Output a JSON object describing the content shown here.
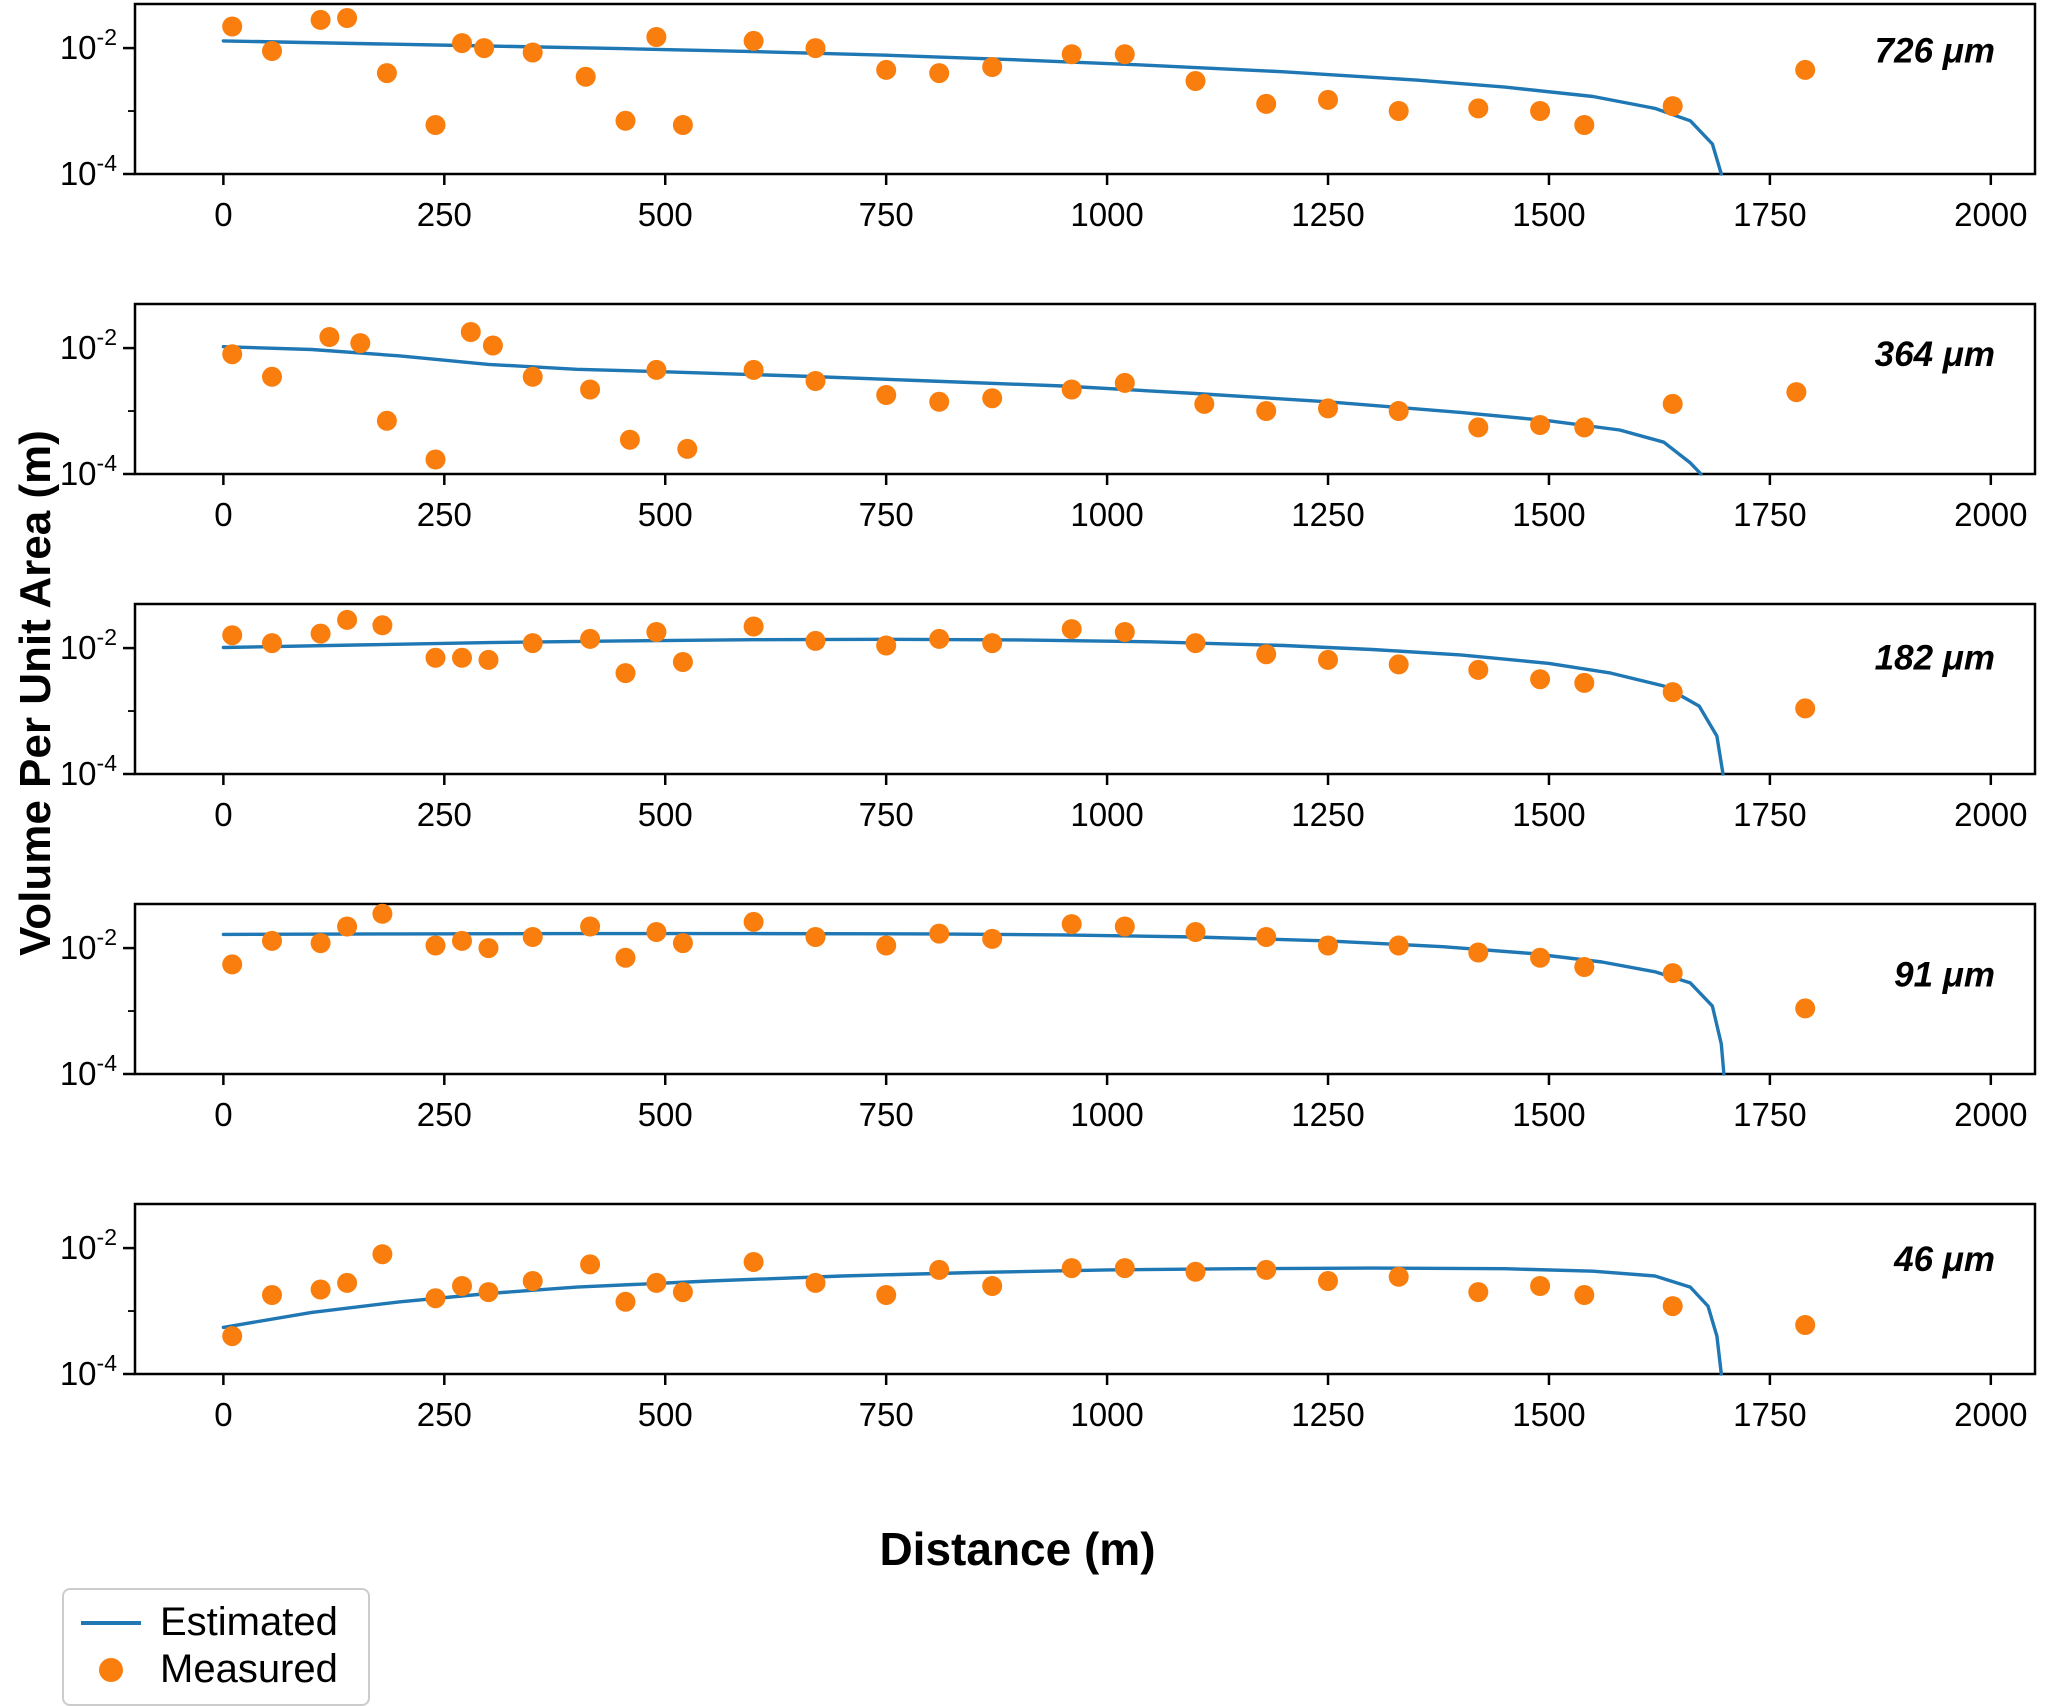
{
  "ylabel": "Volume Per Unit Area (m)",
  "xlabel": "Distance (m)",
  "legend": {
    "estimated": "Estimated",
    "measured": "Measured"
  },
  "colors": {
    "estimated": "#1f77b4",
    "measured": "#f97e0e",
    "axis": "#000000",
    "legend_border": "#cccccc"
  },
  "axes": {
    "xlim": [
      -100,
      2050
    ],
    "ylog_min": -4,
    "ylog_max": -1.3,
    "xticks": [
      0,
      250,
      500,
      750,
      1000,
      1250,
      1500,
      1750,
      2000
    ],
    "ytick_exponents": [
      -2,
      -4
    ],
    "ytick_minor_exponents": [
      -3
    ]
  },
  "chart_data": [
    {
      "type": "scatter",
      "label": "726 μm",
      "label_y": 0.28,
      "estimated": [
        [
          0,
          0.013
        ],
        [
          150,
          0.0118
        ],
        [
          300,
          0.0108
        ],
        [
          450,
          0.0098
        ],
        [
          600,
          0.0088
        ],
        [
          750,
          0.0077
        ],
        [
          900,
          0.0065
        ],
        [
          1050,
          0.0053
        ],
        [
          1200,
          0.0042
        ],
        [
          1350,
          0.0031
        ],
        [
          1450,
          0.0024
        ],
        [
          1550,
          0.0017
        ],
        [
          1620,
          0.0011
        ],
        [
          1660,
          0.0007
        ],
        [
          1685,
          0.0003
        ],
        [
          1695,
          0.0001
        ]
      ],
      "measured": [
        [
          10,
          0.022
        ],
        [
          55,
          0.009
        ],
        [
          110,
          0.028
        ],
        [
          140,
          0.03
        ],
        [
          185,
          0.004
        ],
        [
          240,
          0.0006
        ],
        [
          270,
          0.012
        ],
        [
          295,
          0.01
        ],
        [
          350,
          0.0085
        ],
        [
          410,
          0.0035
        ],
        [
          455,
          0.0007
        ],
        [
          490,
          0.015
        ],
        [
          520,
          0.0006
        ],
        [
          600,
          0.013
        ],
        [
          670,
          0.01
        ],
        [
          750,
          0.0045
        ],
        [
          810,
          0.004
        ],
        [
          870,
          0.005
        ],
        [
          960,
          0.008
        ],
        [
          1020,
          0.008
        ],
        [
          1100,
          0.003
        ],
        [
          1180,
          0.0013
        ],
        [
          1250,
          0.0015
        ],
        [
          1330,
          0.001
        ],
        [
          1420,
          0.0011
        ],
        [
          1490,
          0.001
        ],
        [
          1540,
          0.0006
        ],
        [
          1640,
          0.0012
        ],
        [
          1790,
          0.0045
        ]
      ]
    },
    {
      "type": "scatter",
      "label": "364 μm",
      "label_y": 0.3,
      "estimated": [
        [
          0,
          0.0105
        ],
        [
          100,
          0.0095
        ],
        [
          200,
          0.0075
        ],
        [
          300,
          0.0055
        ],
        [
          400,
          0.0046
        ],
        [
          500,
          0.0042
        ],
        [
          650,
          0.0036
        ],
        [
          800,
          0.003
        ],
        [
          950,
          0.0025
        ],
        [
          1100,
          0.0019
        ],
        [
          1250,
          0.0014
        ],
        [
          1400,
          0.00095
        ],
        [
          1500,
          0.0007
        ],
        [
          1580,
          0.0005
        ],
        [
          1630,
          0.00032
        ],
        [
          1660,
          0.00015
        ],
        [
          1672,
          0.0001
        ]
      ],
      "measured": [
        [
          10,
          0.008
        ],
        [
          55,
          0.0035
        ],
        [
          120,
          0.015
        ],
        [
          155,
          0.012
        ],
        [
          185,
          0.0007
        ],
        [
          240,
          0.00017
        ],
        [
          280,
          0.018
        ],
        [
          305,
          0.011
        ],
        [
          350,
          0.0035
        ],
        [
          415,
          0.0022
        ],
        [
          460,
          0.00035
        ],
        [
          490,
          0.0045
        ],
        [
          525,
          0.00025
        ],
        [
          600,
          0.0045
        ],
        [
          670,
          0.003
        ],
        [
          750,
          0.0018
        ],
        [
          810,
          0.0014
        ],
        [
          870,
          0.0016
        ],
        [
          960,
          0.0022
        ],
        [
          1020,
          0.0028
        ],
        [
          1110,
          0.0013
        ],
        [
          1180,
          0.001
        ],
        [
          1250,
          0.0011
        ],
        [
          1330,
          0.001
        ],
        [
          1420,
          0.00055
        ],
        [
          1490,
          0.0006
        ],
        [
          1540,
          0.00055
        ],
        [
          1640,
          0.0013
        ],
        [
          1780,
          0.002
        ]
      ]
    },
    {
      "type": "scatter",
      "label": "182 μm",
      "label_y": 0.32,
      "estimated": [
        [
          0,
          0.0102
        ],
        [
          150,
          0.0112
        ],
        [
          300,
          0.0122
        ],
        [
          450,
          0.013
        ],
        [
          600,
          0.0136
        ],
        [
          750,
          0.0138
        ],
        [
          900,
          0.0135
        ],
        [
          1050,
          0.0126
        ],
        [
          1200,
          0.011
        ],
        [
          1300,
          0.0095
        ],
        [
          1400,
          0.0078
        ],
        [
          1500,
          0.0057
        ],
        [
          1570,
          0.004
        ],
        [
          1630,
          0.0025
        ],
        [
          1670,
          0.0012
        ],
        [
          1690,
          0.0004
        ],
        [
          1697,
          0.0001
        ]
      ],
      "measured": [
        [
          10,
          0.016
        ],
        [
          55,
          0.012
        ],
        [
          110,
          0.017
        ],
        [
          140,
          0.028
        ],
        [
          180,
          0.023
        ],
        [
          240,
          0.007
        ],
        [
          270,
          0.007
        ],
        [
          300,
          0.0065
        ],
        [
          350,
          0.012
        ],
        [
          415,
          0.014
        ],
        [
          455,
          0.004
        ],
        [
          490,
          0.018
        ],
        [
          520,
          0.006
        ],
        [
          600,
          0.022
        ],
        [
          670,
          0.013
        ],
        [
          750,
          0.011
        ],
        [
          810,
          0.014
        ],
        [
          870,
          0.012
        ],
        [
          960,
          0.02
        ],
        [
          1020,
          0.018
        ],
        [
          1100,
          0.012
        ],
        [
          1180,
          0.008
        ],
        [
          1250,
          0.0065
        ],
        [
          1330,
          0.0055
        ],
        [
          1420,
          0.0045
        ],
        [
          1490,
          0.0032
        ],
        [
          1540,
          0.0028
        ],
        [
          1640,
          0.002
        ],
        [
          1790,
          0.0011
        ]
      ]
    },
    {
      "type": "scatter",
      "label": "91 μm",
      "label_y": 0.42,
      "estimated": [
        [
          0,
          0.0165
        ],
        [
          200,
          0.0168
        ],
        [
          400,
          0.017
        ],
        [
          600,
          0.017
        ],
        [
          800,
          0.0168
        ],
        [
          950,
          0.0162
        ],
        [
          1100,
          0.015
        ],
        [
          1250,
          0.013
        ],
        [
          1380,
          0.0105
        ],
        [
          1480,
          0.0082
        ],
        [
          1560,
          0.006
        ],
        [
          1620,
          0.0042
        ],
        [
          1660,
          0.0028
        ],
        [
          1685,
          0.0012
        ],
        [
          1695,
          0.0003
        ],
        [
          1698,
          0.0001
        ]
      ],
      "measured": [
        [
          10,
          0.0055
        ],
        [
          55,
          0.013
        ],
        [
          110,
          0.012
        ],
        [
          140,
          0.022
        ],
        [
          180,
          0.035
        ],
        [
          240,
          0.011
        ],
        [
          270,
          0.013
        ],
        [
          300,
          0.01
        ],
        [
          350,
          0.015
        ],
        [
          415,
          0.022
        ],
        [
          455,
          0.007
        ],
        [
          490,
          0.018
        ],
        [
          520,
          0.012
        ],
        [
          600,
          0.026
        ],
        [
          670,
          0.015
        ],
        [
          750,
          0.011
        ],
        [
          810,
          0.017
        ],
        [
          870,
          0.014
        ],
        [
          960,
          0.024
        ],
        [
          1020,
          0.022
        ],
        [
          1100,
          0.018
        ],
        [
          1180,
          0.015
        ],
        [
          1250,
          0.011
        ],
        [
          1330,
          0.011
        ],
        [
          1420,
          0.0085
        ],
        [
          1490,
          0.007
        ],
        [
          1540,
          0.005
        ],
        [
          1640,
          0.004
        ],
        [
          1790,
          0.0011
        ]
      ]
    },
    {
      "type": "scatter",
      "label": "46 μm",
      "label_y": 0.33,
      "estimated": [
        [
          0,
          0.00055
        ],
        [
          100,
          0.00095
        ],
        [
          200,
          0.0014
        ],
        [
          300,
          0.0019
        ],
        [
          400,
          0.0024
        ],
        [
          550,
          0.003
        ],
        [
          700,
          0.0036
        ],
        [
          850,
          0.0041
        ],
        [
          1000,
          0.0045
        ],
        [
          1150,
          0.0047
        ],
        [
          1300,
          0.0048
        ],
        [
          1450,
          0.0047
        ],
        [
          1550,
          0.0043
        ],
        [
          1620,
          0.0036
        ],
        [
          1660,
          0.0024
        ],
        [
          1680,
          0.0012
        ],
        [
          1690,
          0.0004
        ],
        [
          1695,
          0.0001
        ]
      ],
      "measured": [
        [
          10,
          0.0004
        ],
        [
          55,
          0.0018
        ],
        [
          110,
          0.0022
        ],
        [
          140,
          0.0028
        ],
        [
          180,
          0.008
        ],
        [
          240,
          0.0016
        ],
        [
          270,
          0.0025
        ],
        [
          300,
          0.002
        ],
        [
          350,
          0.003
        ],
        [
          415,
          0.0055
        ],
        [
          455,
          0.0014
        ],
        [
          490,
          0.0028
        ],
        [
          520,
          0.002
        ],
        [
          600,
          0.006
        ],
        [
          670,
          0.0028
        ],
        [
          750,
          0.0018
        ],
        [
          810,
          0.0045
        ],
        [
          870,
          0.0025
        ],
        [
          960,
          0.0048
        ],
        [
          1020,
          0.0048
        ],
        [
          1100,
          0.0042
        ],
        [
          1180,
          0.0045
        ],
        [
          1250,
          0.003
        ],
        [
          1330,
          0.0035
        ],
        [
          1420,
          0.002
        ],
        [
          1490,
          0.0025
        ],
        [
          1540,
          0.0018
        ],
        [
          1640,
          0.0012
        ],
        [
          1790,
          0.0006
        ]
      ]
    }
  ]
}
